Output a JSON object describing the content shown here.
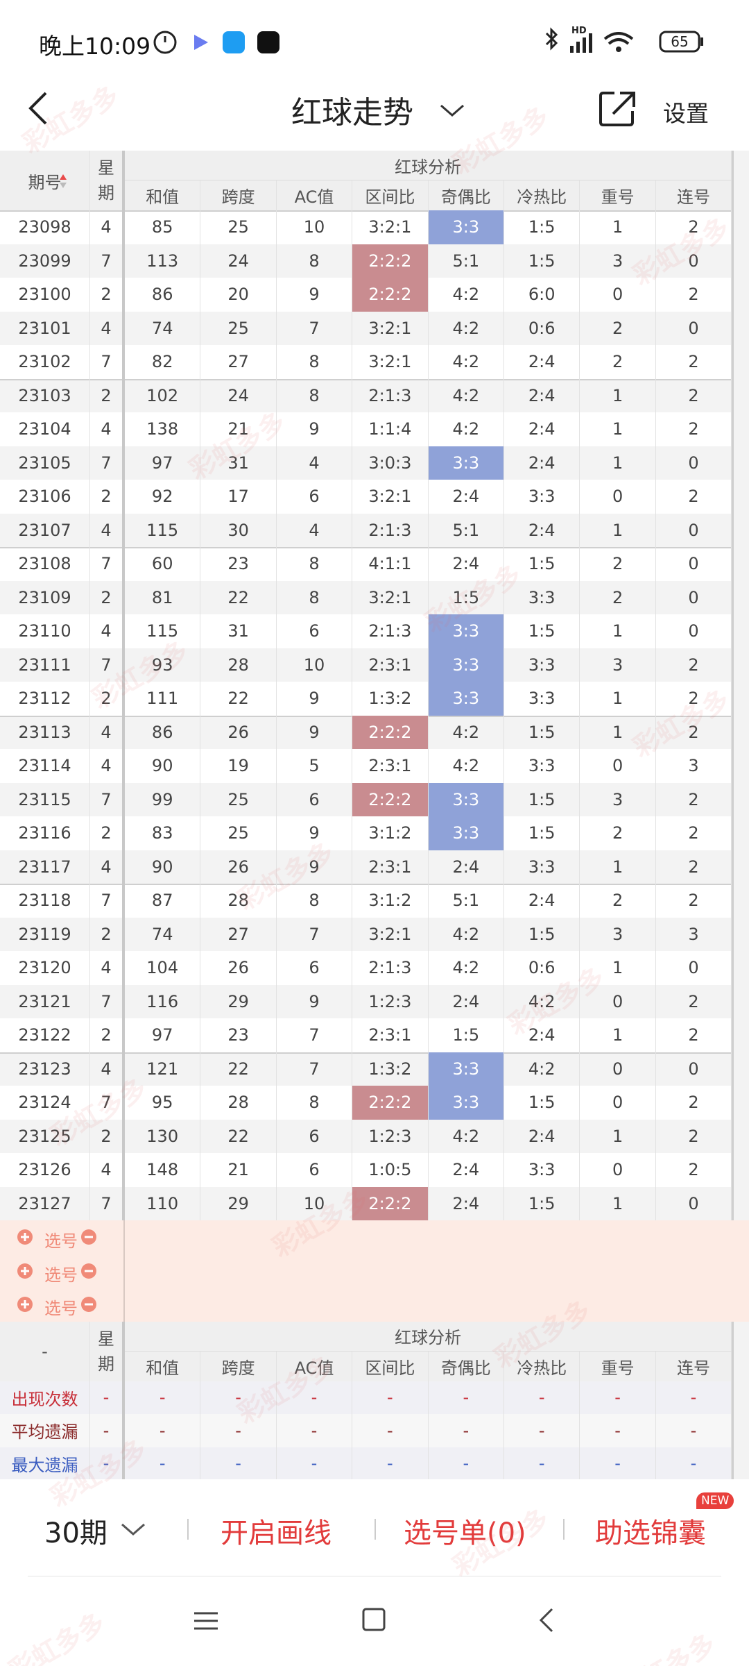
{
  "status_bar": {
    "time": "晚上10:09",
    "network": "HD",
    "battery": "65"
  },
  "header": {
    "title": "红球走势",
    "settings": "设置"
  },
  "watermark": "彩虹多多",
  "table": {
    "period_label": "期号",
    "week_label": "星期",
    "group_label": "红球分析",
    "columns": [
      "和值",
      "跨度",
      "AC值",
      "区间比",
      "奇偶比",
      "冷热比",
      "重号",
      "连号"
    ],
    "rows": [
      [
        "23098",
        "4",
        "85",
        "25",
        "10",
        "3:2:1",
        "3:3",
        "1:5",
        "1",
        "2"
      ],
      [
        "23099",
        "7",
        "113",
        "24",
        "8",
        "2:2:2",
        "5:1",
        "1:5",
        "3",
        "0"
      ],
      [
        "23100",
        "2",
        "86",
        "20",
        "9",
        "2:2:2",
        "4:2",
        "6:0",
        "0",
        "2"
      ],
      [
        "23101",
        "4",
        "74",
        "25",
        "7",
        "3:2:1",
        "4:2",
        "0:6",
        "2",
        "0"
      ],
      [
        "23102",
        "7",
        "82",
        "27",
        "8",
        "3:2:1",
        "4:2",
        "2:4",
        "2",
        "2"
      ],
      [
        "23103",
        "2",
        "102",
        "24",
        "8",
        "2:1:3",
        "4:2",
        "2:4",
        "1",
        "2"
      ],
      [
        "23104",
        "4",
        "138",
        "21",
        "9",
        "1:1:4",
        "4:2",
        "2:4",
        "1",
        "2"
      ],
      [
        "23105",
        "7",
        "97",
        "31",
        "4",
        "3:0:3",
        "3:3",
        "2:4",
        "1",
        "0"
      ],
      [
        "23106",
        "2",
        "92",
        "17",
        "6",
        "3:2:1",
        "2:4",
        "3:3",
        "0",
        "2"
      ],
      [
        "23107",
        "4",
        "115",
        "30",
        "4",
        "2:1:3",
        "5:1",
        "2:4",
        "1",
        "0"
      ],
      [
        "23108",
        "7",
        "60",
        "23",
        "8",
        "4:1:1",
        "2:4",
        "1:5",
        "2",
        "0"
      ],
      [
        "23109",
        "2",
        "81",
        "22",
        "8",
        "3:2:1",
        "1:5",
        "3:3",
        "2",
        "0"
      ],
      [
        "23110",
        "4",
        "115",
        "31",
        "6",
        "2:1:3",
        "3:3",
        "1:5",
        "1",
        "0"
      ],
      [
        "23111",
        "7",
        "93",
        "28",
        "10",
        "2:3:1",
        "3:3",
        "3:3",
        "3",
        "2"
      ],
      [
        "23112",
        "2",
        "111",
        "22",
        "9",
        "1:3:2",
        "3:3",
        "3:3",
        "1",
        "2"
      ],
      [
        "23113",
        "4",
        "86",
        "26",
        "9",
        "2:2:2",
        "4:2",
        "1:5",
        "1",
        "2"
      ],
      [
        "23114",
        "4",
        "90",
        "19",
        "5",
        "2:3:1",
        "4:2",
        "3:3",
        "0",
        "3"
      ],
      [
        "23115",
        "7",
        "99",
        "25",
        "6",
        "2:2:2",
        "3:3",
        "1:5",
        "3",
        "2"
      ],
      [
        "23116",
        "2",
        "83",
        "25",
        "9",
        "3:1:2",
        "3:3",
        "1:5",
        "2",
        "2"
      ],
      [
        "23117",
        "4",
        "90",
        "26",
        "9",
        "2:3:1",
        "2:4",
        "3:3",
        "1",
        "2"
      ],
      [
        "23118",
        "7",
        "87",
        "28",
        "8",
        "3:1:2",
        "5:1",
        "2:4",
        "2",
        "2"
      ],
      [
        "23119",
        "2",
        "74",
        "27",
        "7",
        "3:2:1",
        "4:2",
        "1:5",
        "3",
        "3"
      ],
      [
        "23120",
        "4",
        "104",
        "26",
        "6",
        "2:1:3",
        "4:2",
        "0:6",
        "1",
        "0"
      ],
      [
        "23121",
        "7",
        "116",
        "29",
        "9",
        "1:2:3",
        "2:4",
        "4:2",
        "0",
        "2"
      ],
      [
        "23122",
        "2",
        "97",
        "23",
        "7",
        "2:3:1",
        "1:5",
        "2:4",
        "1",
        "2"
      ],
      [
        "23123",
        "4",
        "121",
        "22",
        "7",
        "1:3:2",
        "3:3",
        "4:2",
        "0",
        "0"
      ],
      [
        "23124",
        "7",
        "95",
        "28",
        "8",
        "2:2:2",
        "3:3",
        "1:5",
        "0",
        "2"
      ],
      [
        "23125",
        "2",
        "130",
        "22",
        "6",
        "1:2:3",
        "4:2",
        "2:4",
        "1",
        "2"
      ],
      [
        "23126",
        "4",
        "148",
        "21",
        "6",
        "1:0:5",
        "2:4",
        "3:3",
        "0",
        "2"
      ],
      [
        "23127",
        "7",
        "110",
        "29",
        "10",
        "2:2:2",
        "2:4",
        "1:5",
        "1",
        "0"
      ]
    ]
  },
  "pick_rows": [
    "选号",
    "选号",
    "选号"
  ],
  "summary": {
    "period_label": "-",
    "week_label": "星期",
    "group_label": "红球分析",
    "rows": [
      {
        "label": "出现次数",
        "color": "#c8303a",
        "values": [
          "-",
          "-",
          "-",
          "-",
          "-",
          "-",
          "-",
          "-",
          "-"
        ]
      },
      {
        "label": "平均遗漏",
        "color": "#8a2a2a",
        "values": [
          "-",
          "-",
          "-",
          "-",
          "-",
          "-",
          "-",
          "-",
          "-"
        ]
      },
      {
        "label": "最大遗漏",
        "color": "#3a5cc0",
        "values": [
          "-",
          "-",
          "-",
          "-",
          "-",
          "-",
          "-",
          "-",
          "-"
        ]
      }
    ]
  },
  "bottom_bar": {
    "periods": "30期",
    "draw": "开启画线",
    "pick_list": "选号单(0)",
    "tips": "助选锦囊",
    "badge": "NEW"
  }
}
